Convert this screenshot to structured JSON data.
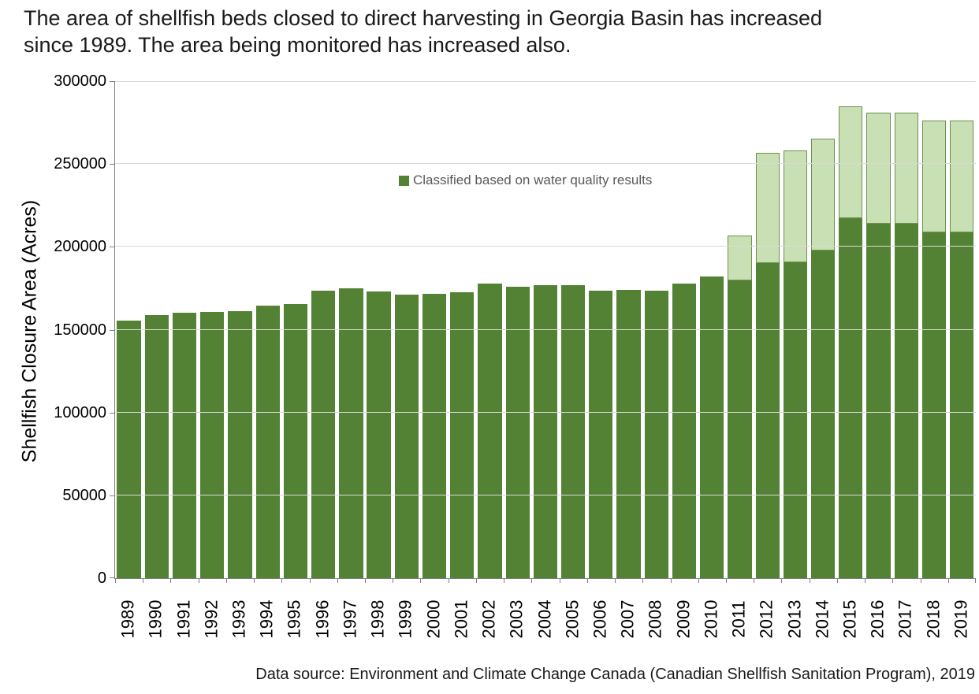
{
  "title": {
    "line1": "The area of shellfish beds closed to direct harvesting in Georgia Basin has increased",
    "line2": "since 1989. The area being monitored has increased also."
  },
  "legend": {
    "label": "Classified based on water quality results",
    "swatch_color": "#548235"
  },
  "source": "Data source: Environment and Climate Change Canada (Canadian Shellfish Sanitation Program), 2019",
  "colors": {
    "classified_fill": "#548235",
    "monitored_fill": "#c8e0b4",
    "monitored_border": "#6d9150",
    "gridline": "#d9d9d9",
    "axis": "#808080",
    "legend_text": "#595959"
  },
  "chart_data": {
    "type": "bar",
    "stacked": true,
    "title": "The area of shellfish beds closed to direct harvesting in Georgia Basin has increased since 1989. The area being monitored has increased also.",
    "xlabel": "",
    "ylabel": "Shellfish Closure Area (Acres)",
    "ylim": [
      0,
      300000
    ],
    "yticks": [
      0,
      50000,
      100000,
      150000,
      200000,
      250000,
      300000
    ],
    "grid": "horizontal",
    "legend_position": "top-inside",
    "categories": [
      "1989",
      "1990",
      "1991",
      "1992",
      "1993",
      "1994",
      "1995",
      "1996",
      "1997",
      "1998",
      "1999",
      "2000",
      "2001",
      "2002",
      "2003",
      "2004",
      "2005",
      "2006",
      "2007",
      "2008",
      "2009",
      "2010",
      "2011",
      "2012",
      "2013",
      "2014",
      "2015",
      "2016",
      "2017",
      "2018",
      "2019"
    ],
    "series": [
      {
        "name": "Classified based on water quality results",
        "color": "#548235",
        "values": [
          155500,
          159000,
          160200,
          160700,
          161200,
          164500,
          165400,
          173500,
          174800,
          173200,
          171300,
          171600,
          172600,
          178000,
          176000,
          177000,
          176700,
          173600,
          173800,
          173400,
          177700,
          182200,
          179700,
          190000,
          190800,
          198000,
          217400,
          214000,
          214000,
          208500,
          208500
        ]
      },
      {
        "name": "",
        "color": "#c8e0b4",
        "values": [
          0,
          0,
          0,
          0,
          0,
          0,
          0,
          0,
          0,
          0,
          0,
          0,
          0,
          0,
          0,
          0,
          0,
          0,
          0,
          0,
          0,
          0,
          27100,
          66800,
          67300,
          67500,
          67200,
          67000,
          67000,
          67700,
          67800
        ]
      }
    ],
    "stack_totals": [
      155500,
      159000,
      160200,
      160700,
      161200,
      164500,
      165400,
      173500,
      174800,
      173200,
      171300,
      171600,
      172600,
      178000,
      176000,
      177000,
      176700,
      173600,
      173800,
      173400,
      177700,
      182200,
      206800,
      256800,
      258100,
      265500,
      284600,
      281000,
      281000,
      276200,
      276300
    ]
  }
}
